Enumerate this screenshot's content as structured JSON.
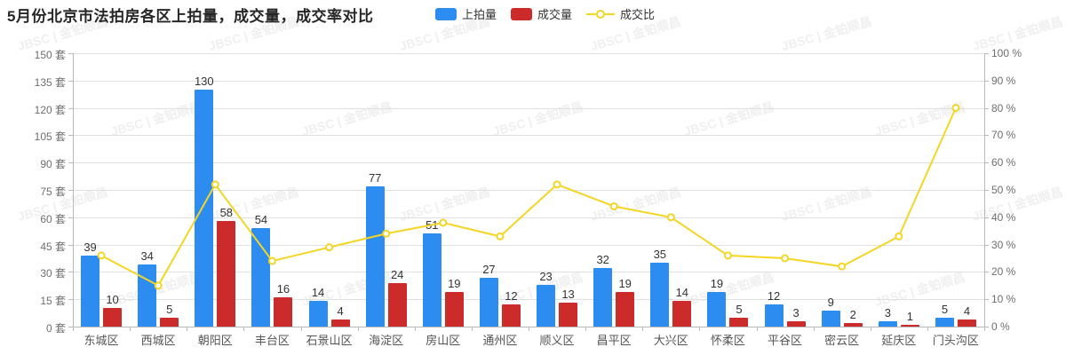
{
  "title": "5月份北京市法拍房各区上拍量，成交量，成交率对比",
  "legend": [
    {
      "label": "上拍量",
      "type": "bar",
      "color": "#2d8cf0"
    },
    {
      "label": "成交量",
      "type": "bar",
      "color": "#cc2b2b"
    },
    {
      "label": "成交比",
      "type": "line",
      "color": "#f4d523"
    }
  ],
  "watermark": "JBSC | 金铂顺昌",
  "colors": {
    "bar_blue": "#2d8cf0",
    "bar_red": "#cc2b2b",
    "line_yellow": "#f4d523",
    "grid": "#e0e0e0",
    "axis": "#b9b9b9",
    "axis_text": "#6e6e6e",
    "value_text": "#333333"
  },
  "chart_data": {
    "type": "bar",
    "title": "5月份北京市法拍房各区上拍量，成交量，成交率对比",
    "categories": [
      "东城区",
      "西城区",
      "朝阳区",
      "丰台区",
      "石景山区",
      "海淀区",
      "房山区",
      "通州区",
      "顺义区",
      "昌平区",
      "大兴区",
      "怀柔区",
      "平谷区",
      "密云区",
      "延庆区",
      "门头沟区"
    ],
    "series": [
      {
        "name": "上拍量",
        "type": "bar",
        "axis": "left",
        "color": "#2d8cf0",
        "values": [
          39,
          34,
          130,
          54,
          14,
          77,
          51,
          27,
          23,
          32,
          35,
          19,
          12,
          9,
          3,
          5
        ]
      },
      {
        "name": "成交量",
        "type": "bar",
        "axis": "left",
        "color": "#cc2b2b",
        "values": [
          10,
          5,
          58,
          16,
          4,
          24,
          19,
          12,
          13,
          19,
          14,
          5,
          3,
          2,
          1,
          4
        ]
      },
      {
        "name": "成交比",
        "type": "line",
        "axis": "right",
        "color": "#f4d523",
        "unit": "%",
        "values": [
          26,
          15,
          52,
          24,
          29,
          34,
          38,
          33,
          52,
          44,
          40,
          26,
          25,
          22,
          33,
          80
        ]
      }
    ],
    "left_axis": {
      "unit": "套",
      "min": 0,
      "max": 150,
      "step": 15
    },
    "right_axis": {
      "unit": "%",
      "min": 0,
      "max": 100,
      "step": 10
    },
    "grid": true,
    "legend_position": "top-center"
  }
}
